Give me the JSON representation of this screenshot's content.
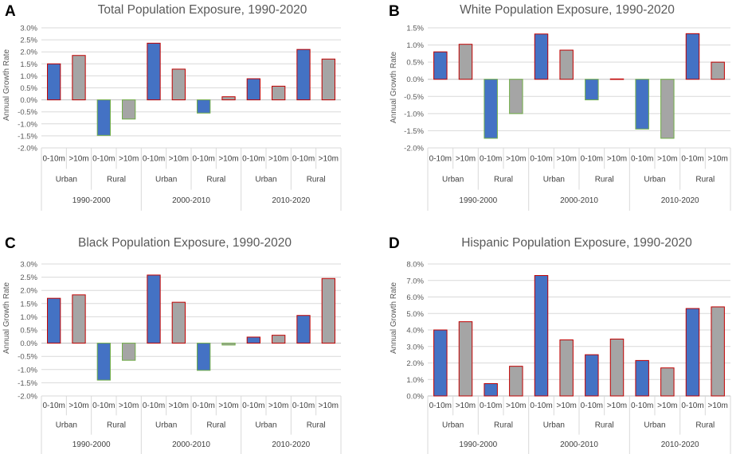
{
  "colors": {
    "blue": "#4472c4",
    "gray": "#a5a5a5",
    "red_border": "#c00000",
    "green_border": "#70ad47"
  },
  "chart_data": [
    {
      "type": "bar",
      "panel": "A",
      "title": "Total Population Exposure, 1990-2020",
      "ylabel": "Annual Growth Rate",
      "xlabel": "",
      "ylim": [
        -0.02,
        0.03
      ],
      "ytick_step": 0.005,
      "ytick_decimals": 1,
      "categories": [
        "0-10m",
        ">10m",
        "0-10m",
        ">10m",
        "0-10m",
        ">10m",
        "0-10m",
        ">10m",
        "0-10m",
        ">10m",
        "0-10m",
        ">10m"
      ],
      "groups_level2": [
        "Urban",
        "Rural",
        "Urban",
        "Rural",
        "Urban",
        "Rural"
      ],
      "groups_level1": [
        "1990-2000",
        "2000-2010",
        "2010-2020"
      ],
      "values": [
        0.015,
        0.0185,
        -0.0148,
        -0.008,
        0.0236,
        0.0128,
        -0.0055,
        0.0013,
        0.0088,
        0.0057,
        0.021,
        0.017
      ],
      "bar_colors": [
        "blue",
        "gray",
        "blue",
        "gray",
        "blue",
        "gray",
        "blue",
        "gray",
        "blue",
        "gray",
        "blue",
        "gray"
      ]
    },
    {
      "type": "bar",
      "panel": "B",
      "title": "White Population Exposure, 1990-2020",
      "ylabel": "Annual Growth Rate",
      "xlabel": "",
      "ylim": [
        -0.02,
        0.015
      ],
      "ytick_step": 0.005,
      "ytick_decimals": 1,
      "categories": [
        "0-10m",
        ">10m",
        "0-10m",
        ">10m",
        "0-10m",
        ">10m",
        "0-10m",
        ">10m",
        "0-10m",
        ">10m",
        "0-10m",
        ">10m"
      ],
      "groups_level2": [
        "Urban",
        "Rural",
        "Urban",
        "Rural",
        "Urban",
        "Rural"
      ],
      "groups_level1": [
        "1990-2000",
        "2000-2010",
        "2010-2020"
      ],
      "values": [
        0.008,
        0.0102,
        -0.0172,
        -0.01,
        0.0132,
        0.0085,
        -0.006,
        0.0001,
        -0.0145,
        -0.0172,
        0.0133,
        0.005
      ],
      "bar_colors": [
        "blue",
        "gray",
        "blue",
        "gray",
        "blue",
        "gray",
        "blue",
        "gray",
        "blue",
        "gray",
        "blue",
        "gray"
      ]
    },
    {
      "type": "bar",
      "panel": "C",
      "title": "Black Population Exposure, 1990-2020",
      "ylabel": "Annual Growth Rate",
      "xlabel": "",
      "ylim": [
        -0.02,
        0.03
      ],
      "ytick_step": 0.005,
      "ytick_decimals": 1,
      "categories": [
        "0-10m",
        ">10m",
        "0-10m",
        ">10m",
        "0-10m",
        ">10m",
        "0-10m",
        ">10m",
        "0-10m",
        ">10m",
        "0-10m",
        ">10m"
      ],
      "groups_level2": [
        "Urban",
        "Rural",
        "Urban",
        "Rural",
        "Urban",
        "Rural"
      ],
      "groups_level1": [
        "1990-2000",
        "2000-2010",
        "2010-2020"
      ],
      "values": [
        0.017,
        0.0183,
        -0.014,
        -0.0065,
        0.0258,
        0.0155,
        -0.0103,
        -0.0007,
        0.0023,
        0.003,
        0.0105,
        0.0245
      ],
      "bar_colors": [
        "blue",
        "gray",
        "blue",
        "gray",
        "blue",
        "gray",
        "blue",
        "gray",
        "blue",
        "gray",
        "blue",
        "gray"
      ]
    },
    {
      "type": "bar",
      "panel": "D",
      "title": "Hispanic Population Exposure, 1990-2020",
      "ylabel": "Annual Growth Rate",
      "xlabel": "",
      "ylim": [
        0,
        0.08
      ],
      "ytick_step": 0.01,
      "ytick_decimals": 1,
      "categories": [
        "0-10m",
        ">10m",
        "0-10m",
        ">10m",
        "0-10m",
        ">10m",
        "0-10m",
        ">10m",
        "0-10m",
        ">10m",
        "0-10m",
        ">10m"
      ],
      "groups_level2": [
        "Urban",
        "Rural",
        "Urban",
        "Rural",
        "Urban",
        "Rural"
      ],
      "groups_level1": [
        "1990-2000",
        "2000-2010",
        "2010-2020"
      ],
      "values": [
        0.04,
        0.045,
        0.0075,
        0.018,
        0.073,
        0.034,
        0.025,
        0.0345,
        0.0215,
        0.017,
        0.053,
        0.054
      ],
      "bar_colors": [
        "blue",
        "gray",
        "blue",
        "gray",
        "blue",
        "gray",
        "blue",
        "gray",
        "blue",
        "gray",
        "blue",
        "gray"
      ]
    }
  ]
}
